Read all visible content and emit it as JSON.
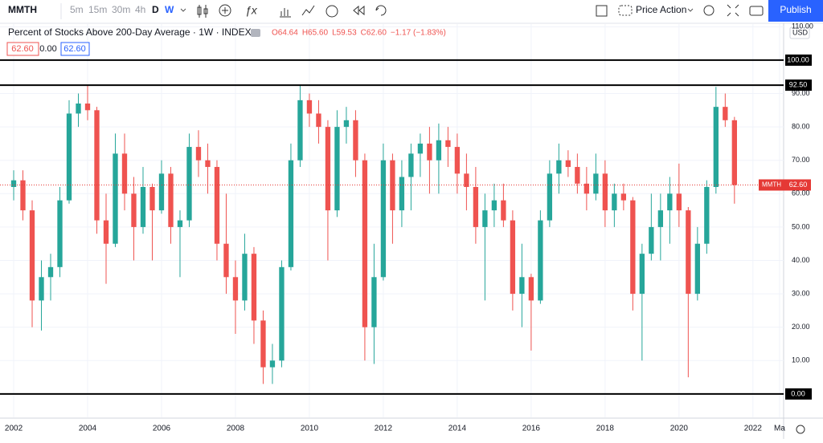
{
  "toolbar": {
    "symbol": "MMTH",
    "intervals": [
      "5m",
      "15m",
      "30m",
      "4h",
      "D",
      "W"
    ],
    "indicator": "Price Action",
    "publish": "Publish"
  },
  "currency": "USD",
  "legend_boxes": [
    "62.60",
    "0.00",
    "62.60"
  ],
  "chart_data": {
    "type": "candlestick",
    "title": "Percent of Stocks Above 200-Day Average · 1W · INDEX",
    "ohlc_legend": [
      "O64.64",
      "H65.60",
      "L59.53",
      "C62.60",
      "−1.17 (−1.83%)"
    ],
    "x": [
      2002.0,
      2002.25,
      2002.5,
      2002.75,
      2003.0,
      2003.25,
      2003.5,
      2003.75,
      2004.0,
      2004.25,
      2004.5,
      2004.75,
      2005.0,
      2005.25,
      2005.5,
      2005.75,
      2006.0,
      2006.25,
      2006.5,
      2006.75,
      2007.0,
      2007.25,
      2007.5,
      2007.75,
      2008.0,
      2008.25,
      2008.5,
      2008.75,
      2009.0,
      2009.25,
      2009.5,
      2009.75,
      2010.0,
      2010.25,
      2010.5,
      2010.75,
      2011.0,
      2011.25,
      2011.5,
      2011.75,
      2012.0,
      2012.25,
      2012.5,
      2012.75,
      2013.0,
      2013.25,
      2013.5,
      2013.75,
      2014.0,
      2014.25,
      2014.5,
      2014.75,
      2015.0,
      2015.25,
      2015.5,
      2015.75,
      2016.0,
      2016.25,
      2016.5,
      2016.75,
      2017.0,
      2017.25,
      2017.5,
      2017.75,
      2018.0,
      2018.25,
      2018.5,
      2018.75,
      2019.0,
      2019.25,
      2019.5,
      2019.75,
      2020.0,
      2020.25,
      2020.5,
      2020.75,
      2021.0,
      2021.25,
      2021.5
    ],
    "open": [
      62,
      64,
      55,
      28,
      35,
      38,
      58,
      84,
      87,
      85,
      52,
      45,
      72,
      60,
      50,
      62,
      55,
      66,
      50,
      52,
      74,
      70,
      68,
      45,
      35,
      28,
      42,
      22,
      8,
      10,
      38,
      70,
      88,
      84,
      80,
      55,
      80,
      82,
      70,
      20,
      35,
      70,
      55,
      65,
      72,
      75,
      70,
      76,
      74,
      66,
      62,
      50,
      55,
      58,
      52,
      30,
      35,
      28,
      52,
      66,
      70,
      68,
      63,
      60,
      66,
      55,
      60,
      58,
      30,
      42,
      50,
      55,
      60,
      55,
      30,
      45,
      62,
      86,
      82
    ],
    "high": [
      67,
      67,
      58,
      40,
      42,
      62,
      88,
      90,
      92.5,
      86,
      60,
      78,
      78,
      65,
      68,
      63,
      70,
      68,
      55,
      78,
      79,
      75,
      70,
      60,
      40,
      48,
      44,
      25,
      15,
      40,
      75,
      92.5,
      90,
      88,
      82,
      85,
      86,
      85,
      72,
      45,
      75,
      72,
      70,
      75,
      78,
      80,
      81,
      80,
      78,
      72,
      68,
      60,
      63,
      63,
      55,
      45,
      36,
      55,
      70,
      75,
      73,
      72,
      68,
      72,
      70,
      63,
      63,
      59,
      45,
      60,
      60,
      65,
      69,
      56,
      50,
      64,
      92,
      90,
      83
    ],
    "low": [
      58,
      52,
      20,
      19,
      28,
      35,
      57,
      80,
      82,
      48,
      33,
      44,
      55,
      40,
      48,
      40,
      54,
      45,
      35,
      50,
      65,
      60,
      40,
      30,
      18,
      25,
      15,
      3,
      3,
      8,
      37,
      68,
      80,
      75,
      40,
      53,
      75,
      65,
      10,
      9,
      34,
      45,
      50,
      55,
      65,
      60,
      60,
      68,
      60,
      55,
      45,
      28,
      50,
      50,
      25,
      20,
      13,
      27,
      50,
      60,
      65,
      60,
      55,
      58,
      50,
      50,
      55,
      25,
      10,
      40,
      40,
      45,
      50,
      5,
      28,
      42,
      60,
      80,
      57
    ],
    "close": [
      64,
      55,
      28,
      35,
      38,
      58,
      84,
      87,
      85,
      52,
      45,
      72,
      60,
      50,
      62,
      55,
      66,
      50,
      52,
      74,
      70,
      68,
      45,
      35,
      28,
      42,
      22,
      8,
      10,
      38,
      70,
      88,
      84,
      80,
      55,
      80,
      82,
      70,
      20,
      35,
      70,
      55,
      65,
      72,
      75,
      70,
      76,
      74,
      66,
      62,
      50,
      55,
      58,
      52,
      30,
      35,
      28,
      52,
      66,
      70,
      68,
      63,
      60,
      66,
      55,
      60,
      58,
      30,
      42,
      50,
      55,
      60,
      55,
      30,
      45,
      62,
      86,
      82,
      62.6
    ],
    "up_color": "#26a69a",
    "down_color": "#ef5350",
    "xlim": [
      2001.63,
      2022.83
    ],
    "xticks": [
      2002,
      2004,
      2006,
      2008,
      2010,
      2012,
      2014,
      2016,
      2018,
      2020,
      2022,
      {
        "value": 2022.72,
        "label": "Ma"
      }
    ],
    "ylim": [
      -7,
      110.8
    ],
    "yticks": [
      {
        "value": 10,
        "label": "10.00"
      },
      {
        "value": 20,
        "label": "20.00"
      },
      {
        "value": 30,
        "label": "30.00"
      },
      {
        "value": 40,
        "label": "40.00"
      },
      {
        "value": 50,
        "label": "50.00"
      },
      {
        "value": 60,
        "label": "60.00"
      },
      {
        "value": 70,
        "label": "70.00"
      },
      {
        "value": 80,
        "label": "80.00"
      },
      {
        "value": 90,
        "label": "90.00"
      },
      {
        "value": 110,
        "label": "110.00"
      }
    ],
    "grid": true,
    "hlines": [
      {
        "value": 100,
        "label": "100.00"
      },
      {
        "value": 92.5,
        "label": "92.50"
      },
      {
        "value": 0,
        "label": "0.00"
      }
    ],
    "last_price": {
      "name": "MMTH",
      "value": 62.6,
      "label": "62.60",
      "color": "#e53935"
    }
  }
}
